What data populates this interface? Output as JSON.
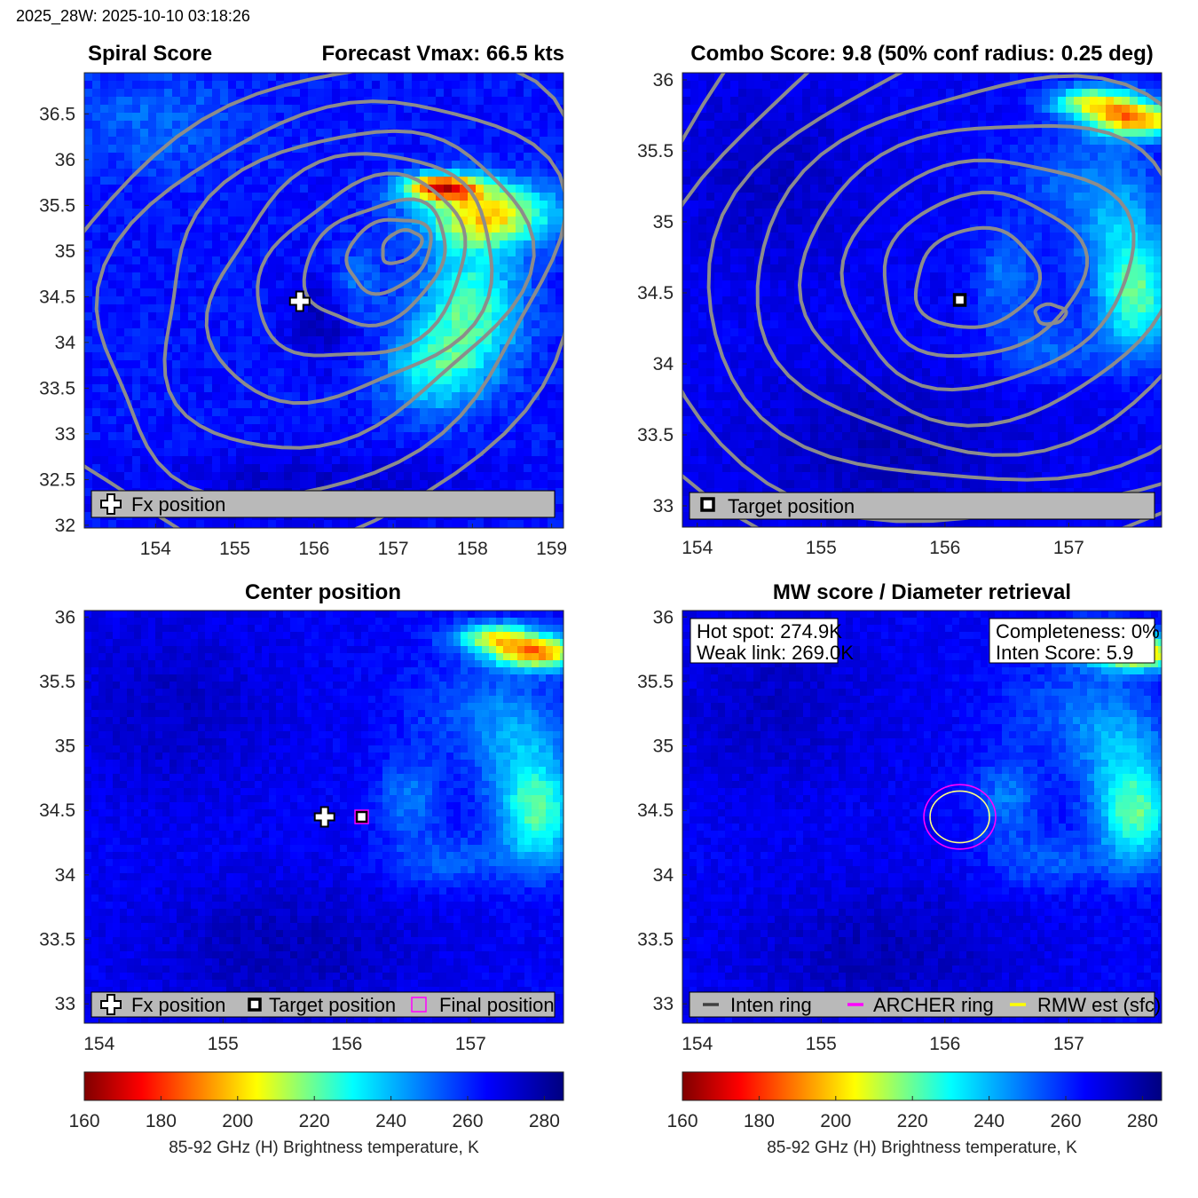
{
  "header": "2025_28W: 2025-10-10 03:18:26",
  "colormap": {
    "range": [
      160,
      285
    ],
    "stops": [
      "#800000",
      "#ff0000",
      "#ffff00",
      "#00ffff",
      "#0000ff",
      "#000080"
    ]
  },
  "colors": {
    "contour": "#8c8c8c",
    "archer": "#ff00ff",
    "rmw": "#ffff80",
    "legend_bg": "#b9b9b9"
  },
  "panels": [
    {
      "id": "spiral",
      "title_left": "Spiral Score",
      "title_right": "Forecast Vmax: 66.5 kts",
      "xticks": [
        "154",
        "155",
        "156",
        "157",
        "158",
        "159"
      ],
      "yticks": [
        "36.5",
        "36",
        "35.5",
        "35",
        "34.5",
        "34",
        "33.5",
        "33",
        "32.5",
        "32"
      ],
      "legend": [
        "Fx position"
      ]
    },
    {
      "id": "combo",
      "title": "Combo Score: 9.8  (50% conf radius: 0.25 deg)",
      "xticks": [
        "154",
        "155",
        "156",
        "157"
      ],
      "yticks": [
        "36",
        "35.5",
        "35",
        "34.5",
        "34",
        "33.5",
        "33"
      ],
      "legend": [
        "Target position"
      ]
    },
    {
      "id": "center",
      "title": "Center position",
      "xticks": [
        "154",
        "155",
        "156",
        "157"
      ],
      "yticks": [
        "36",
        "35.5",
        "35",
        "34.5",
        "34",
        "33.5",
        "33"
      ],
      "legend": [
        "Fx position",
        "Target position",
        "Final position"
      ]
    },
    {
      "id": "mw",
      "title": "MW score / Diameter retrieval",
      "xticks": [
        "154",
        "155",
        "156",
        "157"
      ],
      "yticks": [
        "36",
        "35.5",
        "35",
        "34.5",
        "34",
        "33.5",
        "33"
      ],
      "info_left": [
        "Hot spot: 274.9K",
        "Weak link: 269.0K"
      ],
      "info_right": [
        "Completeness: 0%",
        "Inten Score: 5.9"
      ],
      "legend": [
        "Inten ring",
        "ARCHER ring",
        "RMW est (sfc)"
      ]
    }
  ],
  "colorbars": [
    {
      "ticks": [
        "160",
        "180",
        "200",
        "220",
        "240",
        "260",
        "280"
      ],
      "label": "85-92 GHz (H) Brightness temperature, K"
    },
    {
      "ticks": [
        "160",
        "180",
        "200",
        "220",
        "240",
        "260",
        "280"
      ],
      "label": "85-92 GHz (H) Brightness temperature, K"
    }
  ],
  "chart_data": [
    {
      "type": "heatmap",
      "title": "Spiral Score",
      "subtitle": "Forecast Vmax: 66.5 kts",
      "xlim": [
        153.1,
        159.15
      ],
      "ylim": [
        31.97,
        36.95
      ],
      "overlay": "rotated pressure-like gray contours centered near (157.1, 35.1)",
      "markers": [
        {
          "name": "Fx position",
          "x": 155.82,
          "y": 34.45
        }
      ],
      "cold_band": {
        "lon": [
          157.0,
          159.1
        ],
        "lat": [
          34.0,
          35.9
        ],
        "min_tb": 165
      }
    },
    {
      "type": "heatmap",
      "title": "Combo Score: 9.8  (50% conf radius: 0.25 deg)",
      "xlim": [
        153.88,
        157.75
      ],
      "ylim": [
        32.85,
        36.05
      ],
      "overlay": "concentric gray contours around target",
      "markers": [
        {
          "name": "Target position",
          "x": 156.12,
          "y": 34.45
        }
      ]
    },
    {
      "type": "heatmap",
      "title": "Center position",
      "xlim": [
        153.88,
        157.75
      ],
      "ylim": [
        32.85,
        36.05
      ],
      "markers": [
        {
          "name": "Fx position",
          "x": 155.82,
          "y": 34.45
        },
        {
          "name": "Target position",
          "x": 156.12,
          "y": 34.45
        },
        {
          "name": "Final position",
          "x": 156.12,
          "y": 34.45
        }
      ]
    },
    {
      "type": "heatmap",
      "title": "MW score / Diameter retrieval",
      "xlim": [
        153.88,
        157.75
      ],
      "ylim": [
        32.85,
        36.05
      ],
      "hot_spot_K": 274.9,
      "weak_link_K": 269.0,
      "completeness_pct": 0,
      "inten_score": 5.9,
      "rings": [
        {
          "name": "ARCHER ring",
          "cx": 156.12,
          "cy": 34.45,
          "rx_deg": 0.29,
          "ry_deg": 0.25
        },
        {
          "name": "RMW est (sfc)",
          "cx": 156.12,
          "cy": 34.45,
          "rx_deg": 0.24,
          "ry_deg": 0.2
        }
      ]
    }
  ]
}
